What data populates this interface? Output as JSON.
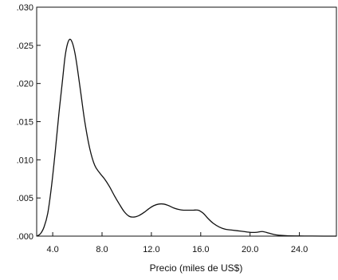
{
  "chart_data": {
    "type": "line",
    "title": "",
    "xlabel": "Precio (miles de US$)",
    "ylabel": "",
    "xlim": [
      2.7,
      27.0
    ],
    "ylim": [
      0,
      0.03
    ],
    "x_ticks": [
      4.0,
      8.0,
      12.0,
      16.0,
      20.0,
      24.0
    ],
    "x_tick_labels": [
      "4.0",
      "8.0",
      "12.0",
      "16.0",
      "20.0",
      "24.0"
    ],
    "y_ticks": [
      0,
      0.005,
      0.01,
      0.015,
      0.02,
      0.025,
      0.03
    ],
    "y_tick_labels": [
      ".000",
      ".005",
      ".010",
      ".015",
      ".020",
      ".025",
      ".030"
    ],
    "grid": false,
    "series": [
      {
        "color": "#111111",
        "x": [
          2.7,
          3.0,
          3.3,
          3.6,
          3.9,
          4.2,
          4.5,
          4.8,
          5.0,
          5.2,
          5.4,
          5.6,
          5.8,
          6.0,
          6.3,
          6.6,
          7.0,
          7.4,
          7.8,
          8.2,
          8.6,
          9.0,
          9.4,
          9.8,
          10.2,
          10.6,
          11.0,
          11.4,
          11.8,
          12.2,
          12.6,
          13.0,
          13.4,
          13.8,
          14.2,
          14.6,
          15.0,
          15.4,
          15.8,
          16.2,
          16.6,
          17.0,
          17.5,
          18.0,
          18.5,
          19.0,
          19.5,
          20.0,
          20.5,
          21.0,
          21.5,
          22.0,
          22.5,
          23.0,
          24.0,
          25.0,
          26.0,
          27.0
        ],
        "y": [
          0.0,
          0.0003,
          0.0012,
          0.003,
          0.0065,
          0.011,
          0.016,
          0.0205,
          0.0235,
          0.0252,
          0.0258,
          0.0253,
          0.024,
          0.022,
          0.0185,
          0.015,
          0.0115,
          0.0093,
          0.0083,
          0.0075,
          0.0065,
          0.0053,
          0.0042,
          0.0032,
          0.0026,
          0.0025,
          0.0027,
          0.0031,
          0.0036,
          0.004,
          0.0042,
          0.0042,
          0.004,
          0.0037,
          0.0035,
          0.0034,
          0.0034,
          0.0034,
          0.0034,
          0.003,
          0.0023,
          0.0017,
          0.0012,
          0.0009,
          0.0008,
          0.0007,
          0.0006,
          0.0005,
          0.0005,
          0.0006,
          0.0004,
          0.0002,
          0.0001,
          5e-05,
          2e-05,
          1e-05,
          0.0,
          0.0
        ]
      }
    ]
  }
}
